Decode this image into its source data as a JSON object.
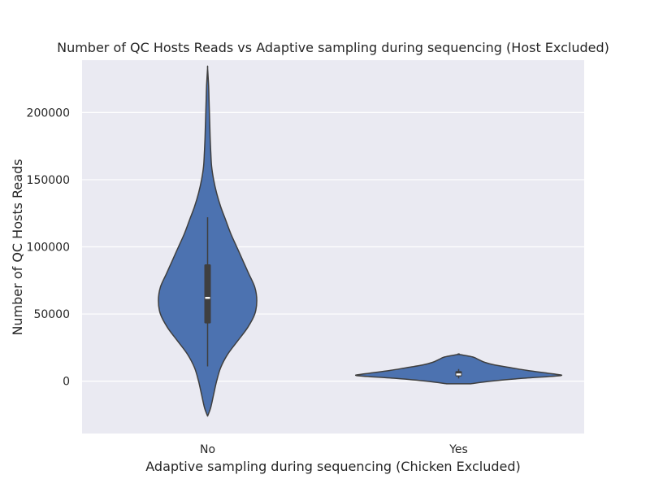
{
  "chart_data": {
    "type": "violin",
    "title": "Number of QC Hosts Reads vs Adaptive sampling during sequencing (Host Excluded)",
    "xlabel": "Adaptive sampling during sequencing (Chicken Excluded)",
    "ylabel": "Number of QC Hosts Reads",
    "categories": [
      "No",
      "Yes"
    ],
    "ylim": [
      -39000,
      239000
    ],
    "yticks": [
      0,
      50000,
      100000,
      150000,
      200000
    ],
    "ytick_labels": [
      "0",
      "50000",
      "100000",
      "150000",
      "200000"
    ],
    "grid": true,
    "colors": {
      "background": "#eaeaf2",
      "violin_fill": "#4c72b0",
      "outline": "#3f3f3f",
      "grid": "#ffffff"
    },
    "violins": [
      {
        "category": "No",
        "extent": [
          -26000,
          233000
        ],
        "density": [
          [
            -26000,
            0.0
          ],
          [
            -20000,
            0.03
          ],
          [
            -10000,
            0.06
          ],
          [
            0,
            0.09
          ],
          [
            10000,
            0.13
          ],
          [
            20000,
            0.2
          ],
          [
            30000,
            0.3
          ],
          [
            40000,
            0.4
          ],
          [
            50000,
            0.47
          ],
          [
            60000,
            0.49
          ],
          [
            70000,
            0.47
          ],
          [
            80000,
            0.41
          ],
          [
            90000,
            0.35
          ],
          [
            100000,
            0.29
          ],
          [
            110000,
            0.23
          ],
          [
            120000,
            0.18
          ],
          [
            130000,
            0.13
          ],
          [
            140000,
            0.09
          ],
          [
            150000,
            0.06
          ],
          [
            160000,
            0.04
          ],
          [
            170000,
            0.032
          ],
          [
            180000,
            0.026
          ],
          [
            190000,
            0.022
          ],
          [
            200000,
            0.018
          ],
          [
            210000,
            0.014
          ],
          [
            220000,
            0.01
          ],
          [
            233000,
            0.0
          ]
        ],
        "median": 62000,
        "q1": 43000,
        "q3": 87000,
        "whisker_low": 11000,
        "whisker_high": 122000
      },
      {
        "category": "Yes",
        "extent": [
          -2000,
          20000
        ],
        "density": [
          [
            -2000,
            0.12
          ],
          [
            0,
            0.32
          ],
          [
            2000,
            0.62
          ],
          [
            4000,
            1.0
          ],
          [
            5000,
            0.98
          ],
          [
            6000,
            0.88
          ],
          [
            8000,
            0.68
          ],
          [
            10000,
            0.52
          ],
          [
            12000,
            0.36
          ],
          [
            14000,
            0.26
          ],
          [
            16000,
            0.2
          ],
          [
            18000,
            0.14
          ],
          [
            20000,
            0.0
          ]
        ],
        "median": 5000,
        "q1": 3500,
        "q3": 7500,
        "whisker_low": 2000,
        "whisker_high": 9000
      }
    ]
  }
}
